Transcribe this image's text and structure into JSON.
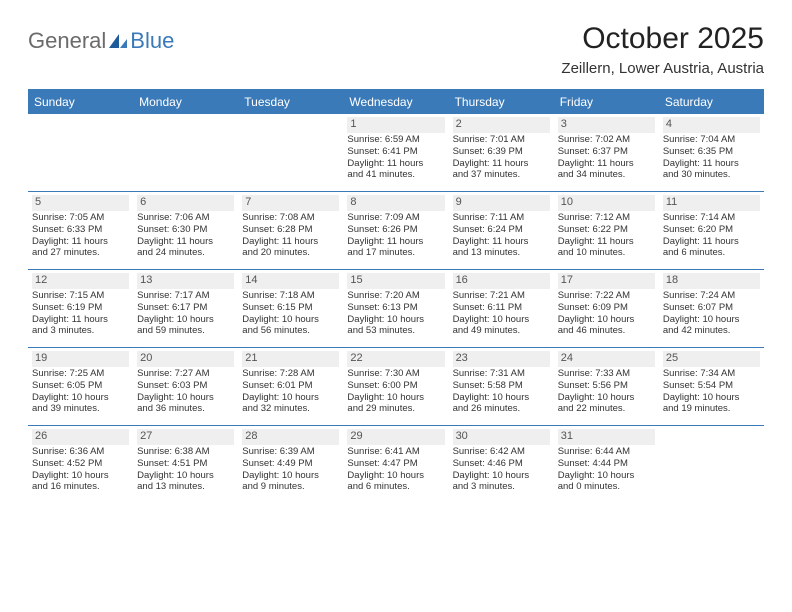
{
  "logo": {
    "word1": "General",
    "word2": "Blue"
  },
  "title": "October 2025",
  "location": "Zeillern, Lower Austria, Austria",
  "colors": {
    "header_bg": "#3a7ab8",
    "header_text": "#ffffff",
    "border": "#3a7ab8",
    "body_text": "#333333",
    "logo_gray": "#6b6b6b",
    "logo_blue": "#3a7ab8",
    "daynum_bg": "#efefef"
  },
  "day_headers": [
    "Sunday",
    "Monday",
    "Tuesday",
    "Wednesday",
    "Thursday",
    "Friday",
    "Saturday"
  ],
  "weeks": [
    [
      {
        "n": "",
        "blank": true
      },
      {
        "n": "",
        "blank": true
      },
      {
        "n": "",
        "blank": true
      },
      {
        "n": "1",
        "sr": "Sunrise: 6:59 AM",
        "ss": "Sunset: 6:41 PM",
        "d1": "Daylight: 11 hours",
        "d2": "and 41 minutes."
      },
      {
        "n": "2",
        "sr": "Sunrise: 7:01 AM",
        "ss": "Sunset: 6:39 PM",
        "d1": "Daylight: 11 hours",
        "d2": "and 37 minutes."
      },
      {
        "n": "3",
        "sr": "Sunrise: 7:02 AM",
        "ss": "Sunset: 6:37 PM",
        "d1": "Daylight: 11 hours",
        "d2": "and 34 minutes."
      },
      {
        "n": "4",
        "sr": "Sunrise: 7:04 AM",
        "ss": "Sunset: 6:35 PM",
        "d1": "Daylight: 11 hours",
        "d2": "and 30 minutes."
      }
    ],
    [
      {
        "n": "5",
        "sr": "Sunrise: 7:05 AM",
        "ss": "Sunset: 6:33 PM",
        "d1": "Daylight: 11 hours",
        "d2": "and 27 minutes."
      },
      {
        "n": "6",
        "sr": "Sunrise: 7:06 AM",
        "ss": "Sunset: 6:30 PM",
        "d1": "Daylight: 11 hours",
        "d2": "and 24 minutes."
      },
      {
        "n": "7",
        "sr": "Sunrise: 7:08 AM",
        "ss": "Sunset: 6:28 PM",
        "d1": "Daylight: 11 hours",
        "d2": "and 20 minutes."
      },
      {
        "n": "8",
        "sr": "Sunrise: 7:09 AM",
        "ss": "Sunset: 6:26 PM",
        "d1": "Daylight: 11 hours",
        "d2": "and 17 minutes."
      },
      {
        "n": "9",
        "sr": "Sunrise: 7:11 AM",
        "ss": "Sunset: 6:24 PM",
        "d1": "Daylight: 11 hours",
        "d2": "and 13 minutes."
      },
      {
        "n": "10",
        "sr": "Sunrise: 7:12 AM",
        "ss": "Sunset: 6:22 PM",
        "d1": "Daylight: 11 hours",
        "d2": "and 10 minutes."
      },
      {
        "n": "11",
        "sr": "Sunrise: 7:14 AM",
        "ss": "Sunset: 6:20 PM",
        "d1": "Daylight: 11 hours",
        "d2": "and 6 minutes."
      }
    ],
    [
      {
        "n": "12",
        "sr": "Sunrise: 7:15 AM",
        "ss": "Sunset: 6:19 PM",
        "d1": "Daylight: 11 hours",
        "d2": "and 3 minutes."
      },
      {
        "n": "13",
        "sr": "Sunrise: 7:17 AM",
        "ss": "Sunset: 6:17 PM",
        "d1": "Daylight: 10 hours",
        "d2": "and 59 minutes."
      },
      {
        "n": "14",
        "sr": "Sunrise: 7:18 AM",
        "ss": "Sunset: 6:15 PM",
        "d1": "Daylight: 10 hours",
        "d2": "and 56 minutes."
      },
      {
        "n": "15",
        "sr": "Sunrise: 7:20 AM",
        "ss": "Sunset: 6:13 PM",
        "d1": "Daylight: 10 hours",
        "d2": "and 53 minutes."
      },
      {
        "n": "16",
        "sr": "Sunrise: 7:21 AM",
        "ss": "Sunset: 6:11 PM",
        "d1": "Daylight: 10 hours",
        "d2": "and 49 minutes."
      },
      {
        "n": "17",
        "sr": "Sunrise: 7:22 AM",
        "ss": "Sunset: 6:09 PM",
        "d1": "Daylight: 10 hours",
        "d2": "and 46 minutes."
      },
      {
        "n": "18",
        "sr": "Sunrise: 7:24 AM",
        "ss": "Sunset: 6:07 PM",
        "d1": "Daylight: 10 hours",
        "d2": "and 42 minutes."
      }
    ],
    [
      {
        "n": "19",
        "sr": "Sunrise: 7:25 AM",
        "ss": "Sunset: 6:05 PM",
        "d1": "Daylight: 10 hours",
        "d2": "and 39 minutes."
      },
      {
        "n": "20",
        "sr": "Sunrise: 7:27 AM",
        "ss": "Sunset: 6:03 PM",
        "d1": "Daylight: 10 hours",
        "d2": "and 36 minutes."
      },
      {
        "n": "21",
        "sr": "Sunrise: 7:28 AM",
        "ss": "Sunset: 6:01 PM",
        "d1": "Daylight: 10 hours",
        "d2": "and 32 minutes."
      },
      {
        "n": "22",
        "sr": "Sunrise: 7:30 AM",
        "ss": "Sunset: 6:00 PM",
        "d1": "Daylight: 10 hours",
        "d2": "and 29 minutes."
      },
      {
        "n": "23",
        "sr": "Sunrise: 7:31 AM",
        "ss": "Sunset: 5:58 PM",
        "d1": "Daylight: 10 hours",
        "d2": "and 26 minutes."
      },
      {
        "n": "24",
        "sr": "Sunrise: 7:33 AM",
        "ss": "Sunset: 5:56 PM",
        "d1": "Daylight: 10 hours",
        "d2": "and 22 minutes."
      },
      {
        "n": "25",
        "sr": "Sunrise: 7:34 AM",
        "ss": "Sunset: 5:54 PM",
        "d1": "Daylight: 10 hours",
        "d2": "and 19 minutes."
      }
    ],
    [
      {
        "n": "26",
        "sr": "Sunrise: 6:36 AM",
        "ss": "Sunset: 4:52 PM",
        "d1": "Daylight: 10 hours",
        "d2": "and 16 minutes."
      },
      {
        "n": "27",
        "sr": "Sunrise: 6:38 AM",
        "ss": "Sunset: 4:51 PM",
        "d1": "Daylight: 10 hours",
        "d2": "and 13 minutes."
      },
      {
        "n": "28",
        "sr": "Sunrise: 6:39 AM",
        "ss": "Sunset: 4:49 PM",
        "d1": "Daylight: 10 hours",
        "d2": "and 9 minutes."
      },
      {
        "n": "29",
        "sr": "Sunrise: 6:41 AM",
        "ss": "Sunset: 4:47 PM",
        "d1": "Daylight: 10 hours",
        "d2": "and 6 minutes."
      },
      {
        "n": "30",
        "sr": "Sunrise: 6:42 AM",
        "ss": "Sunset: 4:46 PM",
        "d1": "Daylight: 10 hours",
        "d2": "and 3 minutes."
      },
      {
        "n": "31",
        "sr": "Sunrise: 6:44 AM",
        "ss": "Sunset: 4:44 PM",
        "d1": "Daylight: 10 hours",
        "d2": "and 0 minutes."
      },
      {
        "n": "",
        "blank": true
      }
    ]
  ]
}
